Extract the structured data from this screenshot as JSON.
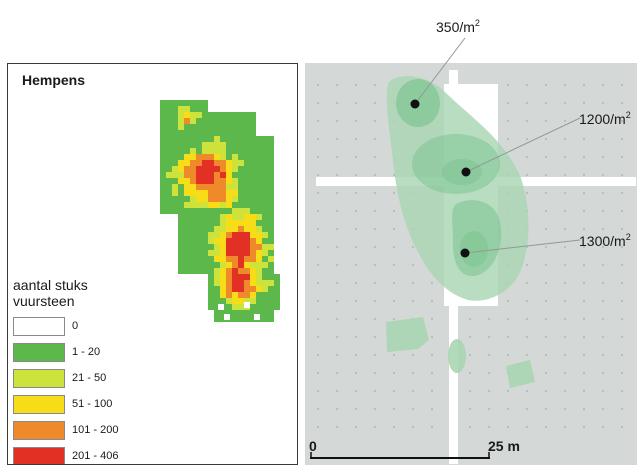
{
  "left_panel": {
    "site_name": "Hempens",
    "legend": {
      "title_line1": "aantal stuks",
      "title_line2": "vuursteen",
      "items": [
        {
          "label": "0",
          "color": "#ffffff"
        },
        {
          "label": "1 - 20",
          "color": "#5cb84a"
        },
        {
          "label": "21 - 50",
          "color": "#cde23a"
        },
        {
          "label": "51 - 100",
          "color": "#f7dd18"
        },
        {
          "label": "101 - 200",
          "color": "#ee8a2a"
        },
        {
          "label": "201 - 406",
          "color": "#e23124"
        }
      ]
    }
  },
  "right_panel": {
    "annotations": [
      {
        "value": "350/m",
        "exp": "2"
      },
      {
        "value": "1200/m",
        "exp": "2"
      },
      {
        "value": "1300/m",
        "exp": "2"
      }
    ],
    "scale": {
      "start": "0",
      "end": "25 m"
    }
  },
  "colors": {
    "map_background": "#d4d8d6",
    "concentration_zone": "#a9d6b3",
    "concentration_core": "#7ec592"
  }
}
